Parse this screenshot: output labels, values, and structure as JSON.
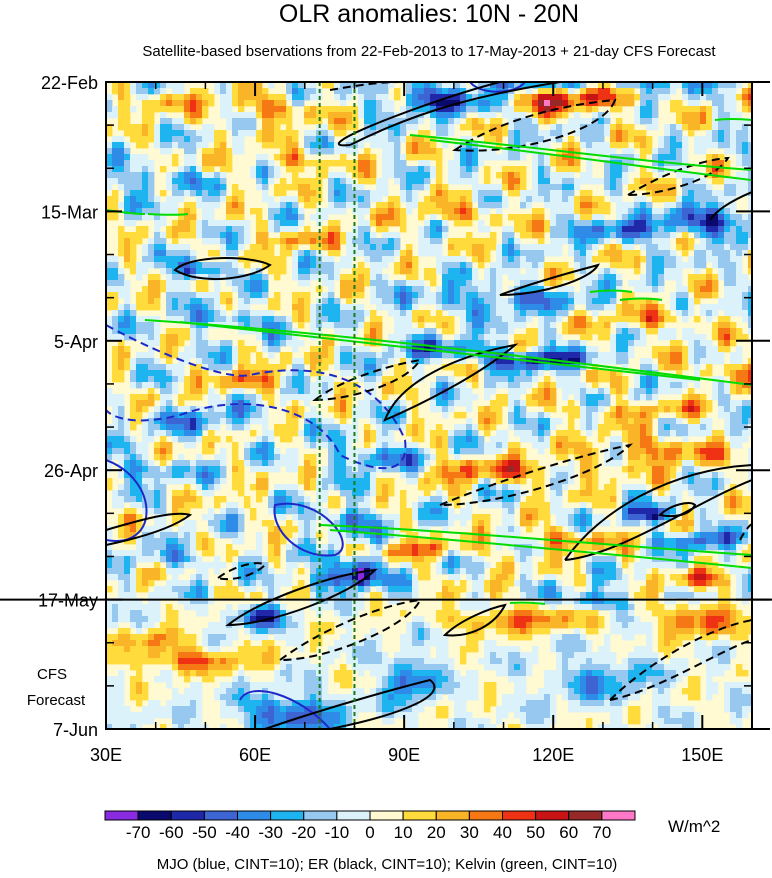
{
  "chart_data": {
    "type": "heatmap",
    "title": "OLR anomalies: 10N - 20N",
    "subtitle": "Satellite-based bservations from 22-Feb-2013 to 17-May-2013 + 21-day CFS Forecast",
    "x_axis": {
      "unit": "longitude (degrees E)",
      "range": [
        30,
        160
      ],
      "ticks": [
        {
          "value": 30,
          "label": "30E"
        },
        {
          "value": 60,
          "label": "60E"
        },
        {
          "value": 90,
          "label": "90E"
        },
        {
          "value": 120,
          "label": "120E"
        },
        {
          "value": 150,
          "label": "150E"
        }
      ]
    },
    "y_axis": {
      "unit": "date",
      "range": [
        "2013-02-22",
        "2013-06-07"
      ],
      "ticks": [
        {
          "value": "2013-02-22",
          "label": "22-Feb"
        },
        {
          "value": "2013-03-15",
          "label": "15-Mar"
        },
        {
          "value": "2013-04-05",
          "label": "5-Apr"
        },
        {
          "value": "2013-04-26",
          "label": "26-Apr"
        },
        {
          "value": "2013-05-17",
          "label": "17-May"
        },
        {
          "value": "2013-06-07",
          "label": "7-Jun"
        }
      ]
    },
    "forecast_label": [
      "CFS",
      "Forecast"
    ],
    "forecast_start": "2013-05-17",
    "reference_lines_lon": [
      73,
      80
    ],
    "colorbar": {
      "unit": "W/m^2",
      "labels": [
        "-70",
        "-60",
        "-50",
        "-40",
        "-30",
        "-20",
        "-10",
        "0",
        "10",
        "20",
        "30",
        "40",
        "50",
        "60",
        "70"
      ],
      "colors": [
        "#8a2be2",
        "#0a0a6e",
        "#1e28a8",
        "#3c64d2",
        "#2e8ce8",
        "#1eb4f0",
        "#96c8f0",
        "#dcf2fa",
        "#fffad2",
        "#ffdc3c",
        "#fab428",
        "#f57814",
        "#f03214",
        "#c81414",
        "#962828",
        "#ff78c8"
      ]
    },
    "footer": "MJO (blue, CINT=10); ER (black, CINT=10); Kelvin (green, CINT=10)",
    "series_colors": {
      "MJO": "#1e28c8",
      "ER": "#000000",
      "Kelvin": "#00dc00"
    }
  }
}
